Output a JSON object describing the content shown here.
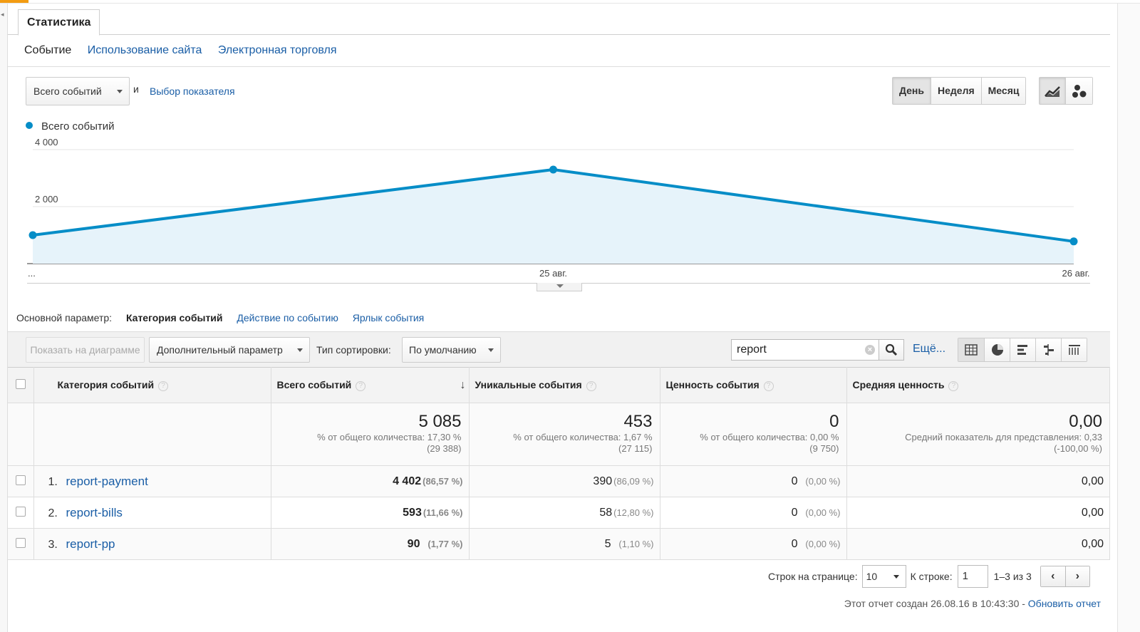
{
  "tabs": {
    "active": "Статистика"
  },
  "subnav": {
    "items": [
      "Событие",
      "Использование сайта",
      "Электронная торговля"
    ]
  },
  "metric_bar": {
    "metric": "Всего событий",
    "and": "и",
    "choose_metric": "Выбор показателя"
  },
  "periods": [
    "День",
    "Неделя",
    "Месяц"
  ],
  "legend": {
    "series_name": "Всего событий",
    "color": "#058dc7"
  },
  "chart_data": {
    "type": "area",
    "x": [
      "...",
      "25 авг.",
      "26 авг."
    ],
    "series": [
      {
        "name": "Всего событий",
        "values": [
          1000,
          3300,
          780
        ]
      }
    ],
    "yticks": [
      "4 000",
      "2 000"
    ],
    "ytick_values": [
      4000,
      2000
    ],
    "ylim": [
      0,
      4300
    ],
    "grid": true,
    "line_color": "#058dc7",
    "fill_color": "#e6f3fa"
  },
  "dimensions": {
    "label": "Основной параметр:",
    "current": "Категория событий",
    "options": [
      "Действие по событию",
      "Ярлык события"
    ]
  },
  "toolbar": {
    "plot_button": "Показать на диаграмме",
    "secondary_dim": "Дополнительный параметр",
    "sort_label": "Тип сортировки:",
    "sort_value": "По умолчанию",
    "search_value": "report",
    "more": "Ещё..."
  },
  "table": {
    "headers": [
      "Категория событий",
      "Всего событий",
      "Уникальные события",
      "Ценность события",
      "Средняя ценность"
    ],
    "totals": {
      "total_events": {
        "value": "5 085",
        "sub1": "% от общего количества: 17,30 %",
        "sub2": "(29 388)"
      },
      "unique_events": {
        "value": "453",
        "sub1": "% от общего количества: 1,67 %",
        "sub2": "(27 115)"
      },
      "event_value": {
        "value": "0",
        "sub1": "% от общего количества: 0,00 %",
        "sub2": "(9 750)"
      },
      "avg_value": {
        "value": "0,00",
        "sub1": "Средний показатель для представления: 0,33",
        "sub2": "(-100,00 %)"
      }
    },
    "rows": [
      {
        "idx": "1.",
        "category": "report-payment",
        "total": "4 402",
        "total_pct": "(86,57 %)",
        "unique": "390",
        "unique_pct": "(86,09 %)",
        "value": "0",
        "value_pct": "(0,00 %)",
        "avg": "0,00"
      },
      {
        "idx": "2.",
        "category": "report-bills",
        "total": "593",
        "total_pct": "(11,66 %)",
        "unique": "58",
        "unique_pct": "(12,80 %)",
        "value": "0",
        "value_pct": "(0,00 %)",
        "avg": "0,00"
      },
      {
        "idx": "3.",
        "category": "report-pp",
        "total": "90",
        "total_pct": "(1,77 %)",
        "unique": "5",
        "unique_pct": "(1,10 %)",
        "value": "0",
        "value_pct": "(0,00 %)",
        "avg": "0,00"
      }
    ]
  },
  "pager": {
    "rows_label": "Строк на странице:",
    "rows_value": "10",
    "goto_label": "К строке:",
    "goto_value": "1",
    "range": "1–3 из 3",
    "prev": "‹",
    "next": "›"
  },
  "footer": {
    "text": "Этот отчет создан 26.08.16 в 10:43:30 -",
    "refresh": "Обновить отчет"
  }
}
